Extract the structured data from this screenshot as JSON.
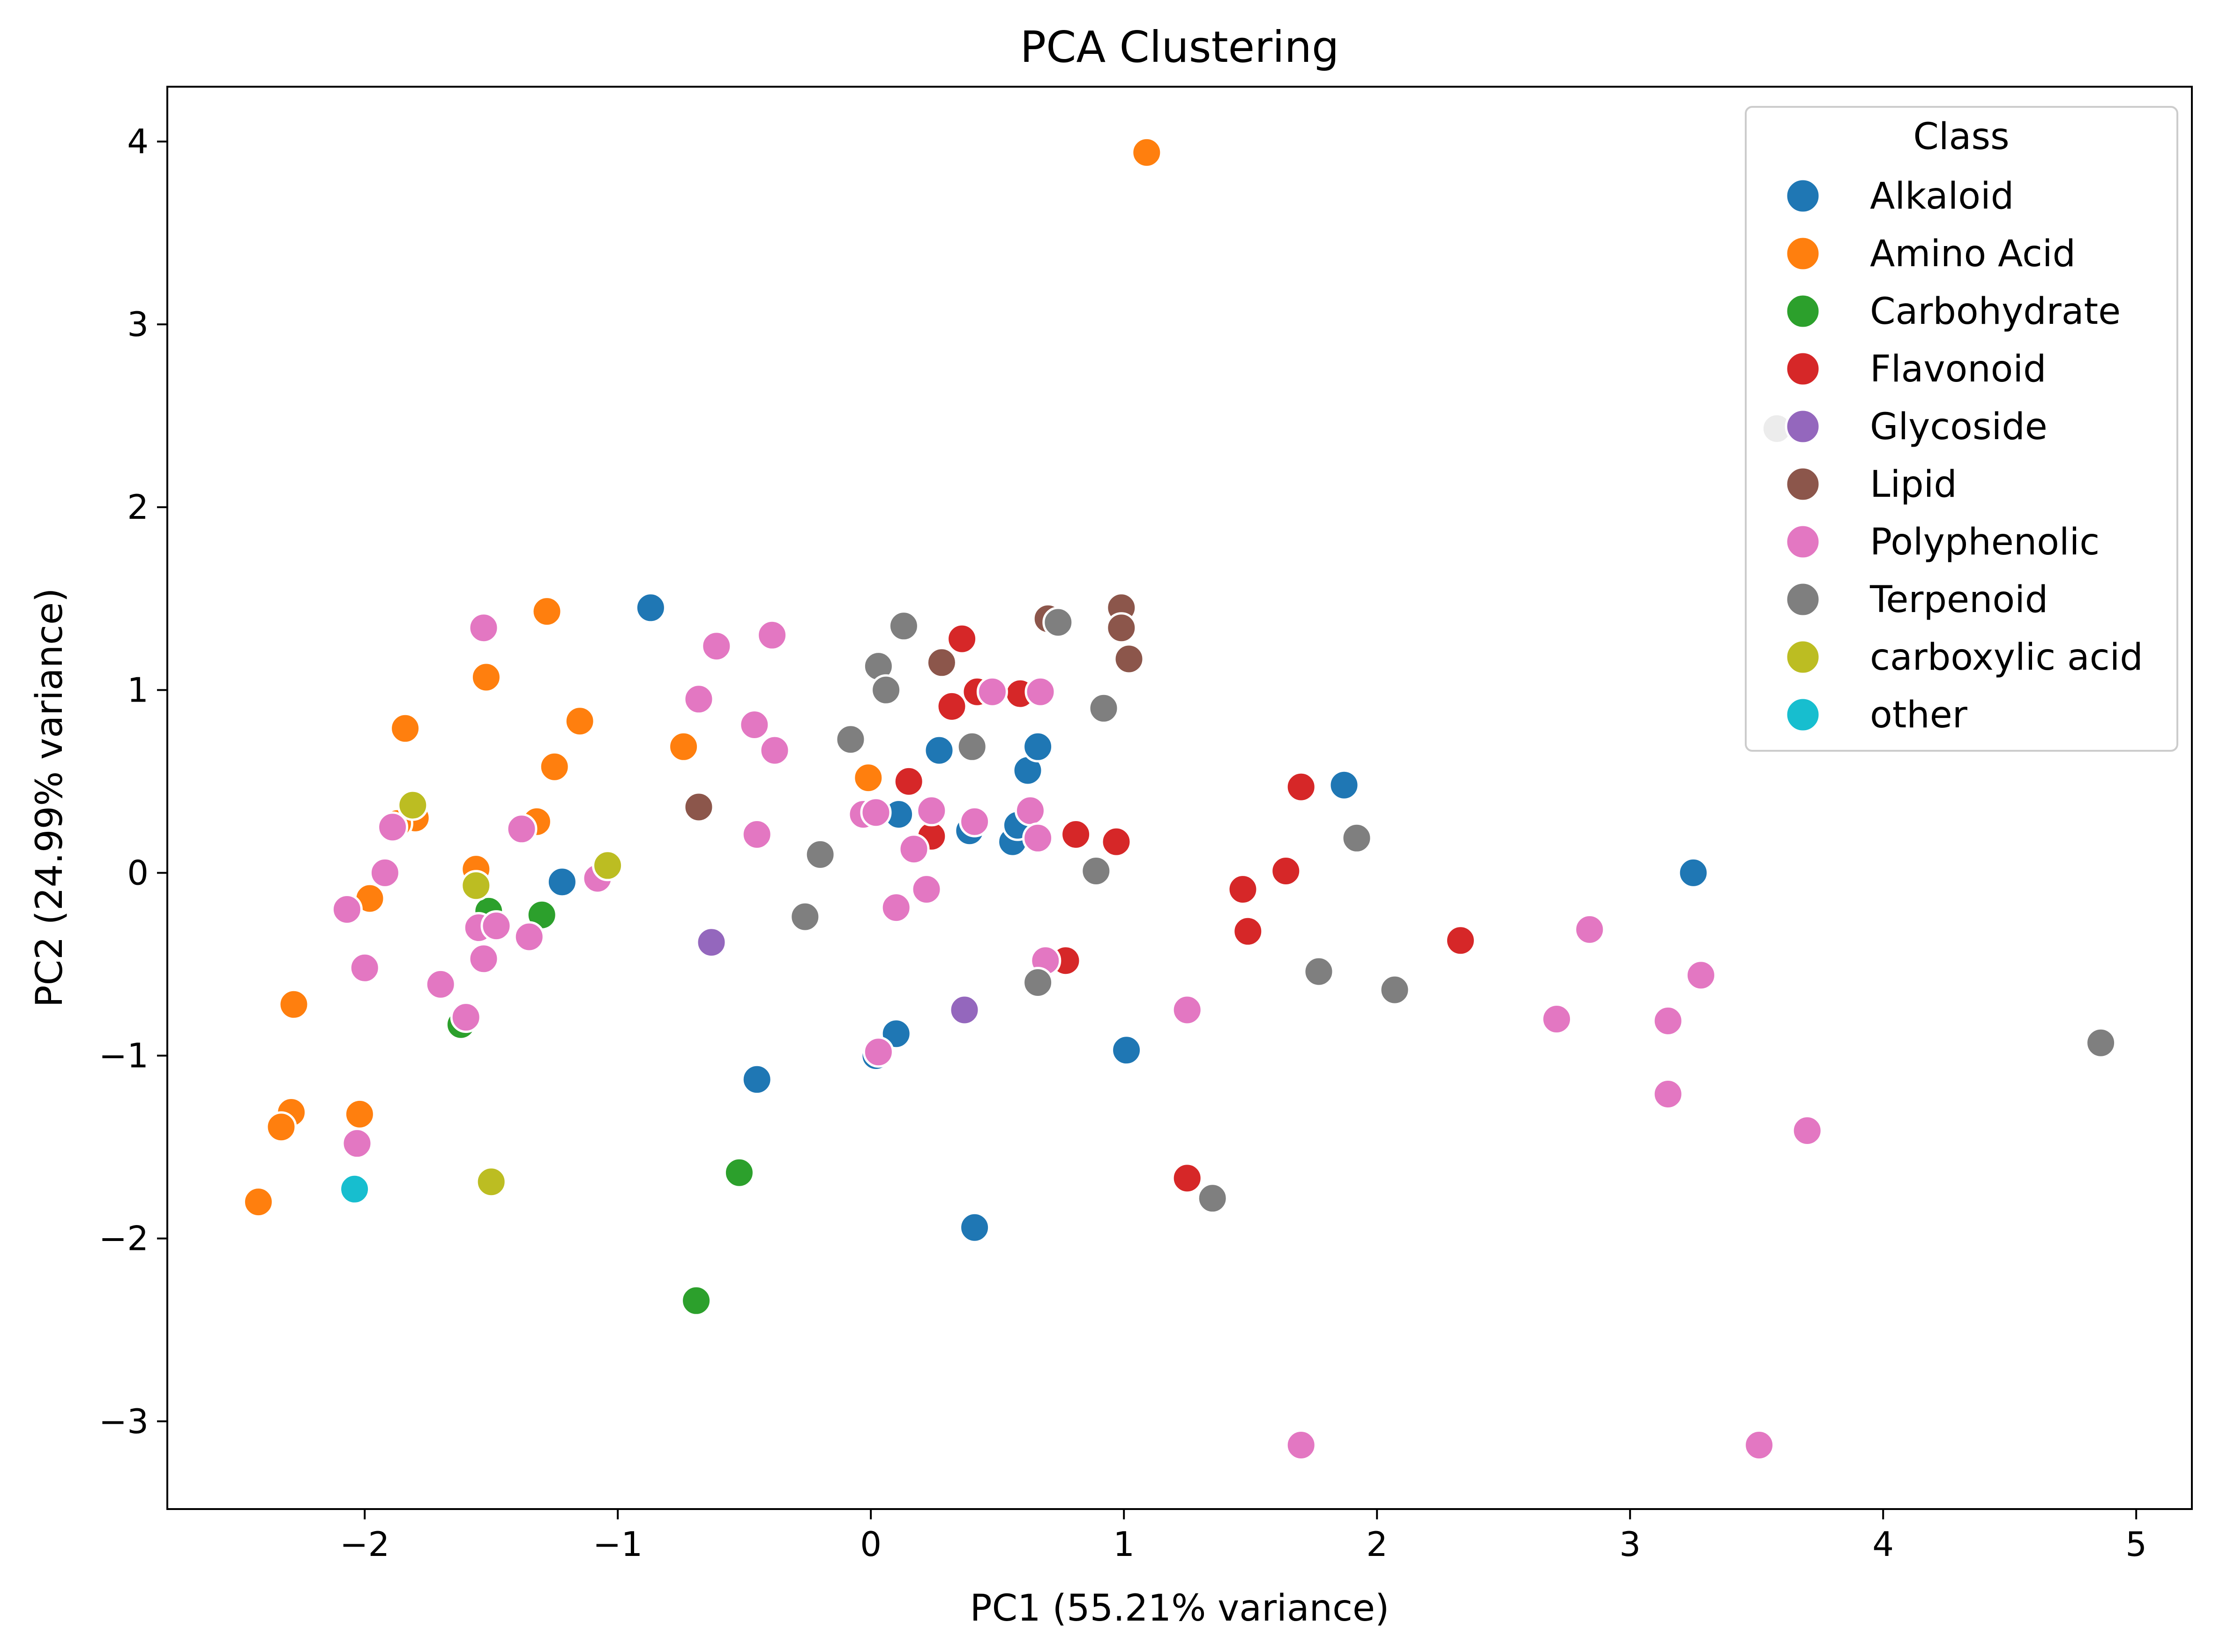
{
  "chart_data": {
    "type": "scatter",
    "title": "PCA Clustering",
    "xlabel": "PC1 (55.21% variance)",
    "ylabel": "PC2 (24.99% variance)",
    "xlim": [
      -2.78,
      5.22
    ],
    "ylim": [
      -3.48,
      4.3
    ],
    "xticks": [
      -2,
      -1,
      0,
      1,
      2,
      3,
      4,
      5
    ],
    "xtick_labels": [
      "−2",
      "−1",
      "0",
      "1",
      "2",
      "3",
      "4",
      "5"
    ],
    "yticks": [
      -3,
      -2,
      -1,
      0,
      1,
      2,
      3,
      4
    ],
    "ytick_labels": [
      "−3",
      "−2",
      "−1",
      "0",
      "1",
      "2",
      "3",
      "4"
    ],
    "grid": false,
    "legend": {
      "title": "Class",
      "placement": "top-right"
    },
    "series": [
      {
        "name": "Alkaloid",
        "color": "#1f77b4",
        "points": [
          [
            -0.87,
            1.45
          ],
          [
            -1.22,
            -0.05
          ],
          [
            0.27,
            0.67
          ],
          [
            0.62,
            0.56
          ],
          [
            0.66,
            0.69
          ],
          [
            0.11,
            0.32
          ],
          [
            0.39,
            0.23
          ],
          [
            0.56,
            0.17
          ],
          [
            0.58,
            0.26
          ],
          [
            1.87,
            0.48
          ],
          [
            3.25,
            0.0
          ],
          [
            -0.45,
            -1.13
          ],
          [
            0.1,
            -0.88
          ],
          [
            0.02,
            -1.0
          ],
          [
            1.01,
            -0.97
          ],
          [
            0.41,
            -1.94
          ]
        ]
      },
      {
        "name": "Amino Acid",
        "color": "#ff7f0e",
        "points": [
          [
            1.09,
            3.94
          ],
          [
            -1.28,
            1.43
          ],
          [
            -1.52,
            1.07
          ],
          [
            -1.84,
            0.79
          ],
          [
            -1.15,
            0.83
          ],
          [
            -0.74,
            0.69
          ],
          [
            -1.25,
            0.58
          ],
          [
            -0.01,
            0.52
          ],
          [
            -1.32,
            0.28
          ],
          [
            -1.8,
            0.3
          ],
          [
            -1.87,
            0.27
          ],
          [
            -1.56,
            0.02
          ],
          [
            -1.98,
            -0.14
          ],
          [
            -2.28,
            -0.72
          ],
          [
            -2.29,
            -1.31
          ],
          [
            -2.02,
            -1.32
          ],
          [
            -2.33,
            -1.39
          ],
          [
            -2.42,
            -1.8
          ]
        ]
      },
      {
        "name": "Carbohydrate",
        "color": "#2ca02c",
        "points": [
          [
            -1.51,
            -0.21
          ],
          [
            -1.3,
            -0.23
          ],
          [
            -1.62,
            -0.83
          ],
          [
            -0.52,
            -1.64
          ],
          [
            -0.69,
            -2.34
          ]
        ]
      },
      {
        "name": "Flavonoid",
        "color": "#d62728",
        "points": [
          [
            0.36,
            1.28
          ],
          [
            0.42,
            0.99
          ],
          [
            0.32,
            0.91
          ],
          [
            0.59,
            0.98
          ],
          [
            0.15,
            0.5
          ],
          [
            0.81,
            0.21
          ],
          [
            0.97,
            0.17
          ],
          [
            0.24,
            0.2
          ],
          [
            1.7,
            0.47
          ],
          [
            1.64,
            0.01
          ],
          [
            1.47,
            -0.09
          ],
          [
            1.49,
            -0.32
          ],
          [
            2.33,
            -0.37
          ],
          [
            0.77,
            -0.48
          ],
          [
            1.25,
            -1.67
          ]
        ]
      },
      {
        "name": "Glycoside",
        "color": "#9467bd",
        "points": [
          [
            -0.63,
            -0.38
          ],
          [
            0.37,
            -0.75
          ]
        ]
      },
      {
        "name": "Lipid",
        "color": "#8c564b",
        "points": [
          [
            0.7,
            1.39
          ],
          [
            0.99,
            1.45
          ],
          [
            0.99,
            1.34
          ],
          [
            1.02,
            1.17
          ],
          [
            0.28,
            1.15
          ],
          [
            -0.68,
            0.36
          ]
        ]
      },
      {
        "name": "Polyphenolic",
        "color": "#e377c2",
        "points": [
          [
            -1.53,
            1.34
          ],
          [
            -0.61,
            1.24
          ],
          [
            -0.39,
            1.3
          ],
          [
            -0.68,
            0.95
          ],
          [
            -0.46,
            0.81
          ],
          [
            -0.38,
            0.67
          ],
          [
            0.48,
            0.99
          ],
          [
            0.67,
            0.99
          ],
          [
            -0.45,
            0.21
          ],
          [
            -1.38,
            0.24
          ],
          [
            -1.89,
            0.25
          ],
          [
            -1.92,
            0.0
          ],
          [
            -1.08,
            -0.03
          ],
          [
            -1.55,
            -0.3
          ],
          [
            -1.48,
            -0.29
          ],
          [
            -1.35,
            -0.35
          ],
          [
            -1.53,
            -0.47
          ],
          [
            -2.07,
            -0.2
          ],
          [
            -2.0,
            -0.52
          ],
          [
            -1.7,
            -0.61
          ],
          [
            -1.6,
            -0.79
          ],
          [
            -2.03,
            -1.48
          ],
          [
            -0.03,
            0.32
          ],
          [
            0.02,
            0.33
          ],
          [
            0.24,
            0.34
          ],
          [
            0.41,
            0.28
          ],
          [
            0.63,
            0.34
          ],
          [
            0.66,
            0.19
          ],
          [
            0.17,
            0.13
          ],
          [
            0.22,
            -0.09
          ],
          [
            0.1,
            -0.19
          ],
          [
            0.69,
            -0.48
          ],
          [
            1.25,
            -0.75
          ],
          [
            0.03,
            -0.98
          ],
          [
            2.84,
            -0.31
          ],
          [
            3.28,
            -0.56
          ],
          [
            2.71,
            -0.8
          ],
          [
            3.15,
            -0.81
          ],
          [
            3.15,
            -1.21
          ],
          [
            3.7,
            -1.41
          ],
          [
            1.7,
            -3.13
          ],
          [
            3.51,
            -3.13
          ]
        ]
      },
      {
        "name": "Terpenoid",
        "color": "#7f7f7f",
        "points": [
          [
            0.13,
            1.35
          ],
          [
            0.03,
            1.13
          ],
          [
            0.06,
            1.0
          ],
          [
            0.74,
            1.37
          ],
          [
            0.92,
            0.9
          ],
          [
            -0.08,
            0.73
          ],
          [
            0.4,
            0.69
          ],
          [
            -0.2,
            0.1
          ],
          [
            -0.26,
            -0.24
          ],
          [
            0.89,
            0.01
          ],
          [
            1.92,
            0.19
          ],
          [
            1.77,
            -0.54
          ],
          [
            2.07,
            -0.64
          ],
          [
            0.66,
            -0.6
          ],
          [
            4.86,
            -0.93
          ],
          [
            1.35,
            -1.78
          ],
          [
            3.58,
            2.43
          ]
        ]
      },
      {
        "name": "carboxylic acid",
        "color": "#bcbd22",
        "points": [
          [
            -1.81,
            0.37
          ],
          [
            -1.04,
            0.04
          ],
          [
            -1.56,
            -0.07
          ],
          [
            -1.5,
            -1.69
          ]
        ]
      },
      {
        "name": "other",
        "color": "#17becf",
        "points": [
          [
            -2.04,
            -1.73
          ]
        ]
      }
    ]
  }
}
